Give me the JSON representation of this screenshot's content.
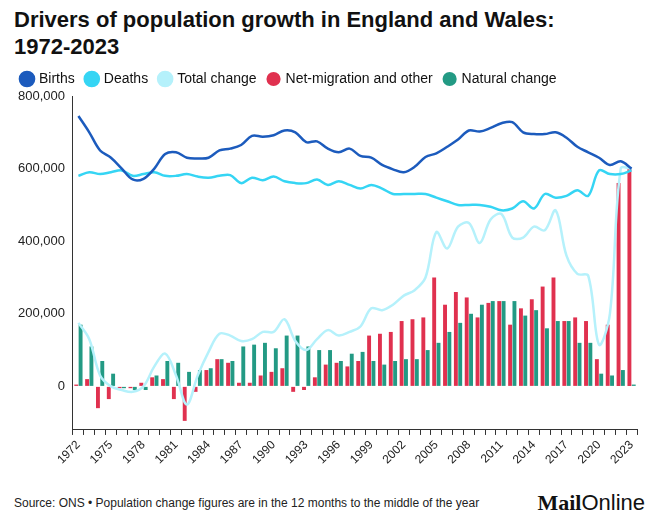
{
  "chart_data": {
    "type": "bar",
    "title": "Drivers of population growth in England and Wales: 1972-2023",
    "source": "Source: ONS • Population change figures are in the 12 months to the middle of the year",
    "logo": [
      "Mail",
      "Online"
    ],
    "categories": [
      1972,
      null,
      null,
      1975,
      null,
      null,
      1978,
      null,
      null,
      1981,
      null,
      null,
      1984,
      null,
      null,
      1987,
      null,
      null,
      1990,
      null,
      null,
      1993,
      null,
      null,
      1996,
      null,
      null,
      1999,
      null,
      null,
      2002,
      null,
      null,
      2005,
      null,
      null,
      2008,
      null,
      null,
      2011,
      null,
      null,
      2014,
      null,
      null,
      2017,
      null,
      null,
      2020,
      null,
      null,
      2023
    ],
    "ylim": [
      -120000,
      800000
    ],
    "yticks": [
      0,
      {
        "value": 200000,
        "label": "200,000"
      },
      {
        "value": 400000,
        "label": "400,000"
      },
      {
        "value": 600000,
        "label": "600,000"
      },
      {
        "value": 800000,
        "label": "800,000"
      }
    ],
    "grid": false,
    "legend": "top-left",
    "series": [
      {
        "name": "Births",
        "type": "line",
        "color": "#1c5bbd",
        "values": [
          745000,
          700000,
          650000,
          630000,
          600000,
          570000,
          572000,
          600000,
          640000,
          645000,
          630000,
          628000,
          630000,
          650000,
          655000,
          665000,
          690000,
          688000,
          692000,
          705000,
          700000,
          673000,
          675000,
          655000,
          645000,
          655000,
          635000,
          630000,
          610000,
          598000,
          590000,
          605000,
          632000,
          642000,
          660000,
          680000,
          705000,
          702000,
          712000,
          725000,
          728000,
          700000,
          695000,
          695000,
          700000,
          685000,
          660000,
          645000,
          630000,
          610000,
          620000,
          600000
        ]
      },
      {
        "name": "Deaths",
        "type": "line",
        "color": "#35d5f4",
        "values": [
          580000,
          590000,
          585000,
          590000,
          595000,
          580000,
          585000,
          590000,
          580000,
          580000,
          585000,
          578000,
          575000,
          580000,
          582000,
          560000,
          575000,
          568000,
          578000,
          565000,
          560000,
          560000,
          570000,
          555000,
          565000,
          555000,
          545000,
          555000,
          545000,
          530000,
          530000,
          530000,
          530000,
          520000,
          510000,
          500000,
          500000,
          500000,
          495000,
          485000,
          490000,
          510000,
          490000,
          530000,
          520000,
          525000,
          540000,
          525000,
          595000,
          585000,
          585000,
          595000
        ]
      },
      {
        "name": "Total change",
        "type": "line",
        "color": "#b5f1fb",
        "values": [
          175000,
          130000,
          30000,
          0,
          -10000,
          -15000,
          0,
          55000,
          90000,
          30000,
          -50000,
          30000,
          95000,
          145000,
          140000,
          125000,
          130000,
          150000,
          150000,
          185000,
          125000,
          100000,
          130000,
          155000,
          140000,
          150000,
          165000,
          215000,
          210000,
          225000,
          250000,
          265000,
          300000,
          425000,
          380000,
          440000,
          450000,
          395000,
          460000,
          475000,
          410000,
          410000,
          440000,
          430000,
          485000,
          360000,
          310000,
          305000,
          115000,
          200000,
          600000,
          600000
        ]
      },
      {
        "name": "Net-migration and other",
        "type": "bar",
        "color": "#e0314f",
        "values": [
          5000,
          20000,
          -60000,
          -35000,
          -5000,
          -5000,
          10000,
          25000,
          20000,
          -35000,
          -95000,
          -15000,
          45000,
          75000,
          65000,
          10000,
          10000,
          30000,
          40000,
          50000,
          -15000,
          -10000,
          25000,
          60000,
          65000,
          55000,
          70000,
          140000,
          145000,
          150000,
          180000,
          185000,
          190000,
          300000,
          225000,
          260000,
          245000,
          190000,
          230000,
          235000,
          170000,
          215000,
          240000,
          275000,
          300000,
          180000,
          190000,
          180000,
          75000,
          170000,
          560000,
          600000
        ]
      },
      {
        "name": "Natural change",
        "type": "bar",
        "color": "#239a84",
        "values": [
          170000,
          110000,
          70000,
          35000,
          -5000,
          -10000,
          -10000,
          30000,
          70000,
          65000,
          40000,
          45000,
          50000,
          75000,
          70000,
          110000,
          115000,
          120000,
          105000,
          140000,
          140000,
          110000,
          100000,
          100000,
          70000,
          90000,
          95000,
          70000,
          60000,
          70000,
          75000,
          75000,
          100000,
          120000,
          150000,
          175000,
          200000,
          225000,
          235000,
          235000,
          235000,
          195000,
          210000,
          160000,
          180000,
          180000,
          120000,
          120000,
          35000,
          30000,
          45000,
          5000
        ]
      }
    ]
  }
}
